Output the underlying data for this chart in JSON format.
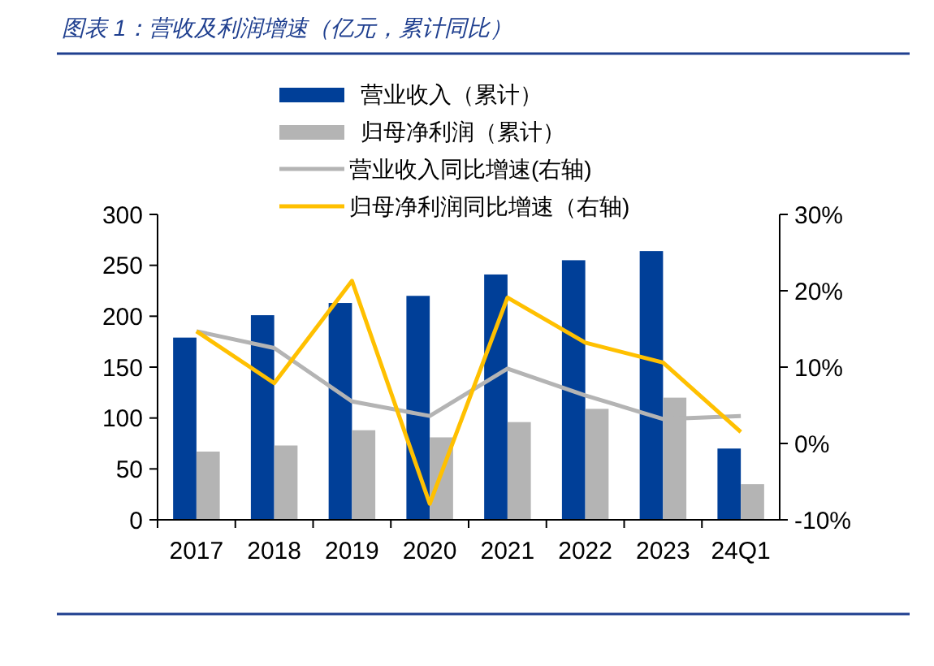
{
  "chart_data": {
    "type": "bar",
    "title": "图表 1：营收及利润增速（亿元，累计同比）",
    "categories": [
      "2017",
      "2018",
      "2019",
      "2020",
      "2021",
      "2022",
      "2023",
      "24Q1"
    ],
    "series": [
      {
        "name": "营业收入（累计）",
        "color": "#003f98",
        "values": [
          179,
          201,
          213,
          220,
          241,
          255,
          264,
          70
        ]
      },
      {
        "name": "归母净利润（累计）",
        "color": "#b4b4b4",
        "values": [
          67,
          73,
          88,
          81,
          96,
          109,
          120,
          35
        ]
      },
      {
        "name": "营业收入同比增速(右轴)",
        "type": "line",
        "axis": "y2",
        "color": "#b4b4b4",
        "values": [
          14.7,
          12.5,
          5.5,
          3.6,
          9.8,
          6.3,
          3.2,
          3.6
        ]
      },
      {
        "name": "归母净利润同比增速（右轴)",
        "type": "line",
        "axis": "y2",
        "color": "#ffc000",
        "values": [
          14.7,
          7.9,
          21.3,
          -7.9,
          19.1,
          13.2,
          10.6,
          1.5
        ]
      }
    ],
    "ylim": [
      0,
      300
    ],
    "yticks": [
      0,
      50,
      100,
      150,
      200,
      250,
      300
    ],
    "y2lim": [
      -10,
      30
    ],
    "y2ticks": [
      {
        "value": -10,
        "label": "-10%"
      },
      {
        "value": 0,
        "label": "0%"
      },
      {
        "value": 10,
        "label": "10%"
      },
      {
        "value": 20,
        "label": "20%"
      },
      {
        "value": 30,
        "label": "30%"
      }
    ],
    "legend": "top",
    "grid": false
  }
}
